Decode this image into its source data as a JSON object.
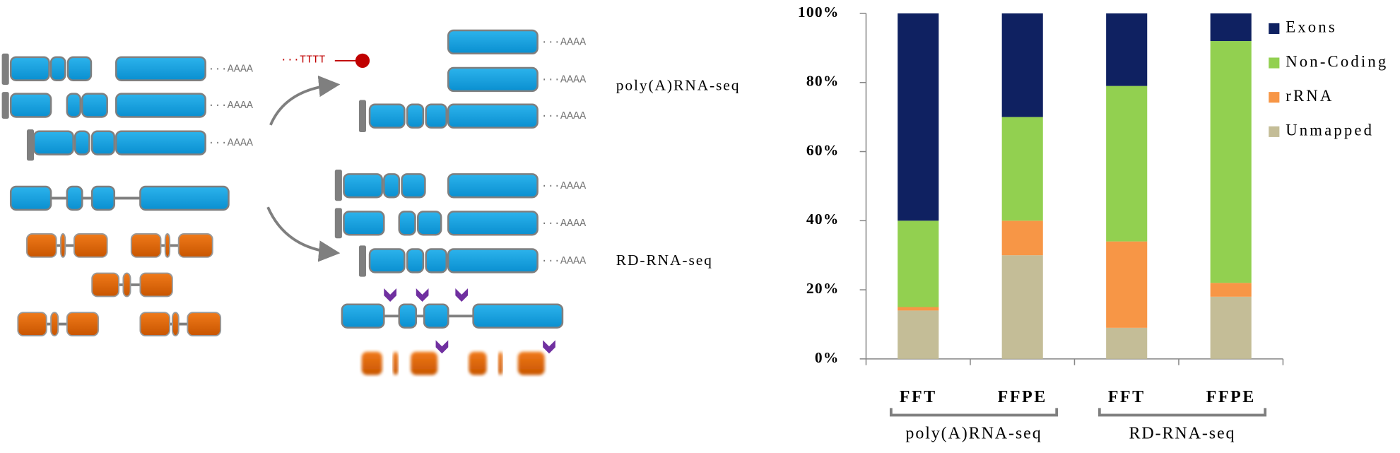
{
  "diagram": {
    "poly_a_tail": "···AAAA",
    "primer": "···TTTT",
    "labels": [
      "poly(A)RNA-seq",
      "RD-RNA-seq"
    ]
  },
  "chart_data": {
    "type": "stacked-bar",
    "categories": [
      "FFT",
      "FFPE",
      "FFT",
      "FFPE"
    ],
    "groups": [
      "poly(A)RNA-seq",
      "RD-RNA-seq"
    ],
    "series": [
      {
        "name": "Exons",
        "color": "#0f2161",
        "values": [
          60,
          30,
          21,
          8
        ]
      },
      {
        "name": "Non-Coding",
        "color": "#92d050",
        "values": [
          25,
          30,
          45,
          70
        ]
      },
      {
        "name": "rRNA",
        "color": "#f79646",
        "values": [
          1,
          10,
          25,
          4
        ]
      },
      {
        "name": "Unmapped",
        "color": "#c4bd97",
        "values": [
          14,
          30,
          9,
          18
        ]
      }
    ],
    "ylim": [
      0,
      100
    ],
    "yticks": [
      {
        "value": 0,
        "label": "0%"
      },
      {
        "value": 20,
        "label": "20%"
      },
      {
        "value": 40,
        "label": "40%"
      },
      {
        "value": 60,
        "label": "60%"
      },
      {
        "value": 80,
        "label": "80%"
      },
      {
        "value": 100,
        "label": "100%"
      }
    ],
    "legend": "right"
  }
}
